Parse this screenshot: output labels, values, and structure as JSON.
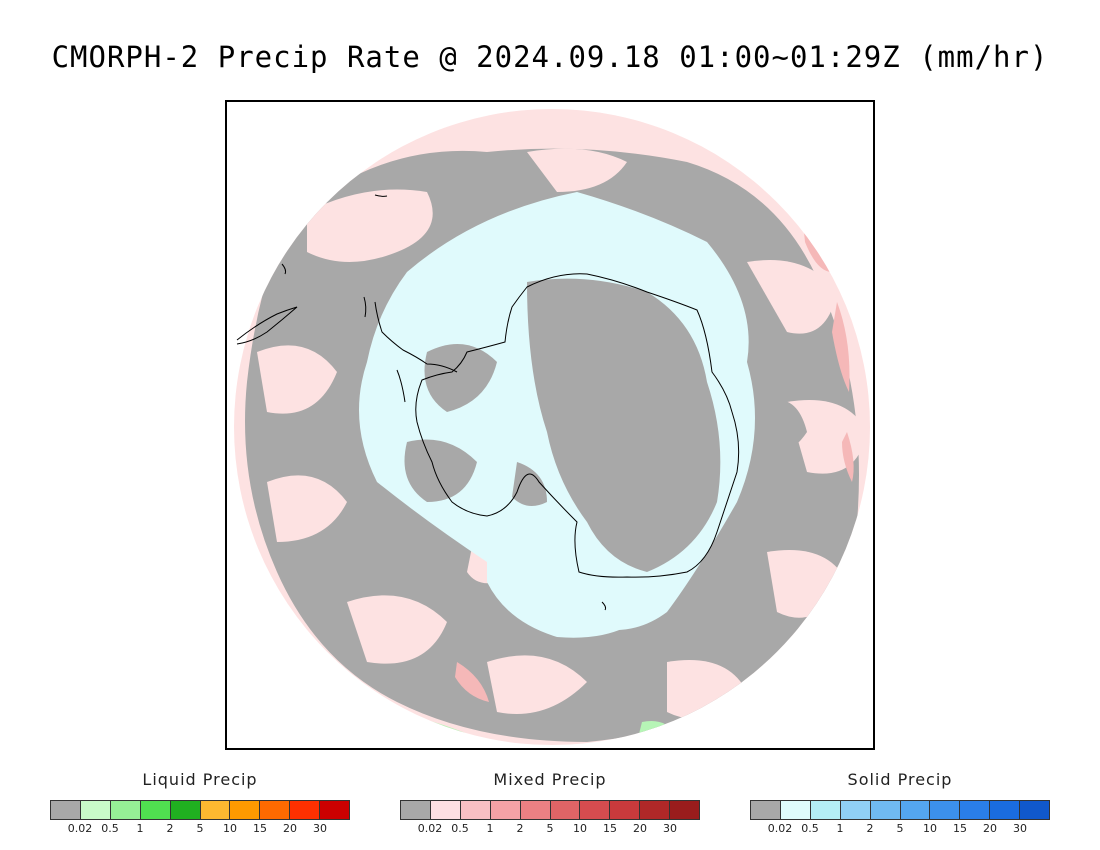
{
  "title": "CMORPH-2 Precip Rate @ 2024.09.18 01:00~01:29Z (mm/hr)",
  "map": {
    "projection": "south-polar stereographic",
    "colors": {
      "ocean_no_precip": "#a8a8a8",
      "mixed_light": "#fde2e2",
      "solid_light": "#e0fafc",
      "mixed_med": "#f5b8b8",
      "liquid_light": "#b6f5b6",
      "coastline": "#000000"
    }
  },
  "legends": [
    {
      "title": "Liquid Precip",
      "colors": [
        "#a8a8a8",
        "#c8fac8",
        "#96f096",
        "#50e050",
        "#20b020",
        "#fdb830",
        "#ff9a00",
        "#ff6a00",
        "#ff3000",
        "#cc0000"
      ],
      "ticks": [
        "0.02",
        "0.5",
        "1",
        "2",
        "5",
        "10",
        "15",
        "20",
        "30"
      ]
    },
    {
      "title": "Mixed Precip",
      "colors": [
        "#a8a8a8",
        "#fde0e3",
        "#f9c0c4",
        "#f4a2a6",
        "#ec8083",
        "#e06466",
        "#d64c4f",
        "#c83a3c",
        "#b02828",
        "#9a1c1c"
      ],
      "ticks": [
        "0.02",
        "0.5",
        "1",
        "2",
        "5",
        "10",
        "15",
        "20",
        "30"
      ]
    },
    {
      "title": "Solid Precip",
      "colors": [
        "#a8a8a8",
        "#e0fcfc",
        "#b4eef6",
        "#90d0f6",
        "#70baf2",
        "#54a6f0",
        "#3c90ec",
        "#2a7ee8",
        "#1a6ce0",
        "#1058cc"
      ],
      "ticks": [
        "0.02",
        "0.5",
        "1",
        "2",
        "5",
        "10",
        "15",
        "20",
        "30"
      ]
    }
  ]
}
